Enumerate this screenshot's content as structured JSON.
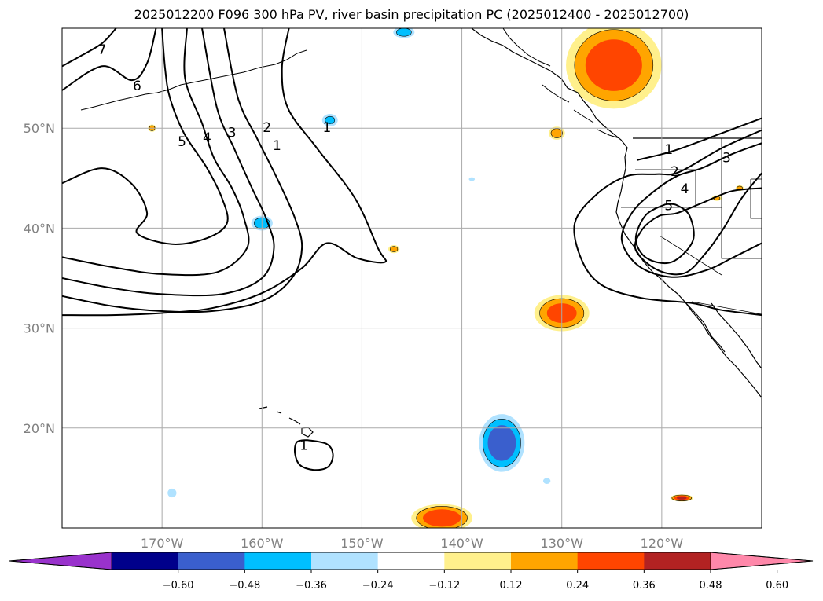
{
  "chart_data": {
    "type": "heatmap",
    "title": "2025012200 F096 300 hPa PV, river basin precipitation PC (2025012400 - 2025012700)",
    "xlabel": "",
    "ylabel": "",
    "xlim": [
      -180,
      -110
    ],
    "ylim": [
      10,
      60
    ],
    "grid": true,
    "x_ticks": [
      {
        "value": -170,
        "label": "170°W"
      },
      {
        "value": -160,
        "label": "160°W"
      },
      {
        "value": -150,
        "label": "150°W"
      },
      {
        "value": -140,
        "label": "140°W"
      },
      {
        "value": -130,
        "label": "130°W"
      },
      {
        "value": -120,
        "label": "120°W"
      }
    ],
    "y_ticks": [
      {
        "value": 20,
        "label": "20°N"
      },
      {
        "value": 30,
        "label": "30°N"
      },
      {
        "value": 40,
        "label": "40°N"
      },
      {
        "value": 50,
        "label": "50°N"
      }
    ],
    "colorbar": {
      "placement": "bottom",
      "extend": "both",
      "levels": [
        -0.6,
        -0.48,
        -0.36,
        -0.24,
        -0.12,
        0.12,
        0.24,
        0.36,
        0.48,
        0.6
      ],
      "tick_labels": [
        "−0.60",
        "−0.48",
        "−0.36",
        "−0.24",
        "−0.12",
        "0.12",
        "0.24",
        "0.36",
        "0.48",
        "0.60"
      ],
      "colors": [
        "#9932cc",
        "#00008b",
        "#3a5fcd",
        "#00bfff",
        "#b0e2ff",
        "#ffffff",
        "#fff08c",
        "#ffa500",
        "#ff4500",
        "#b22222",
        "#ff88aa"
      ]
    },
    "pv_contour_labels": [
      {
        "label": "7",
        "lon": -176.0,
        "lat": 57.8
      },
      {
        "label": "6",
        "lon": -172.5,
        "lat": 54.2
      },
      {
        "label": "5",
        "lon": -168.0,
        "lat": 48.6
      },
      {
        "label": "4",
        "lon": -165.5,
        "lat": 49.0
      },
      {
        "label": "3",
        "lon": -163.0,
        "lat": 49.5
      },
      {
        "label": "2",
        "lon": -159.5,
        "lat": 50.0
      },
      {
        "label": "1",
        "lon": -153.5,
        "lat": 50.0
      },
      {
        "label": "1",
        "lon": -158.5,
        "lat": 48.2
      },
      {
        "label": "1",
        "lon": -119.3,
        "lat": 47.8
      },
      {
        "label": "2",
        "lon": -118.7,
        "lat": 45.6
      },
      {
        "label": "3",
        "lon": -113.5,
        "lat": 47.0
      },
      {
        "label": "4",
        "lon": -117.7,
        "lat": 43.9
      },
      {
        "label": "5",
        "lon": -119.3,
        "lat": 42.2
      },
      {
        "label": "1",
        "lon": -155.8,
        "lat": 18.2
      }
    ],
    "pv_contours": [
      {
        "level": 7,
        "points": [
          [
            -180,
            56.2
          ],
          [
            -178,
            57.3
          ],
          [
            -176,
            58.5
          ],
          [
            -174.6,
            60
          ]
        ]
      },
      {
        "level": 6,
        "points": [
          [
            -180,
            53.8
          ],
          [
            -176,
            56.2
          ],
          [
            -173,
            54.8
          ],
          [
            -171.5,
            56.5
          ],
          [
            -170.6,
            60
          ]
        ]
      },
      {
        "level": 5,
        "points": [
          [
            -180,
            44.5
          ],
          [
            -176,
            46
          ],
          [
            -173,
            44.4
          ],
          [
            -171.5,
            41.5
          ],
          [
            -172.5,
            39.5
          ],
          [
            -169,
            38.4
          ],
          [
            -165.5,
            39
          ],
          [
            -163.5,
            40.5
          ],
          [
            -164,
            43
          ],
          [
            -165.5,
            46
          ],
          [
            -167.8,
            49.5
          ],
          [
            -169.2,
            53
          ],
          [
            -169.7,
            56
          ],
          [
            -170,
            60
          ]
        ]
      },
      {
        "level": 4,
        "points": [
          [
            -180,
            37.1
          ],
          [
            -175,
            36.1
          ],
          [
            -170,
            35.4
          ],
          [
            -164.5,
            35.6
          ],
          [
            -161.5,
            38
          ],
          [
            -161.8,
            41
          ],
          [
            -163,
            44
          ],
          [
            -164.8,
            47
          ],
          [
            -166,
            50.5
          ],
          [
            -167.7,
            55
          ],
          [
            -167.5,
            60
          ]
        ]
      },
      {
        "level": 3,
        "points": [
          [
            -180,
            35
          ],
          [
            -175,
            34
          ],
          [
            -170,
            33.4
          ],
          [
            -164,
            33.4
          ],
          [
            -160,
            35
          ],
          [
            -158.8,
            38
          ],
          [
            -159.6,
            41
          ],
          [
            -161,
            44
          ],
          [
            -162.8,
            48
          ],
          [
            -164.5,
            52
          ],
          [
            -166,
            60
          ]
        ]
      },
      {
        "level": 2,
        "points": [
          [
            -180,
            33.2
          ],
          [
            -175,
            32.2
          ],
          [
            -170,
            31.7
          ],
          [
            -165,
            31.7
          ],
          [
            -160,
            32.7
          ],
          [
            -157,
            35
          ],
          [
            -156,
            38
          ],
          [
            -156.7,
            41
          ],
          [
            -158.5,
            45
          ],
          [
            -160.5,
            49
          ],
          [
            -162.4,
            53
          ],
          [
            -163.8,
            60
          ]
        ]
      },
      {
        "level": 1,
        "points": [
          [
            -180,
            31.3
          ],
          [
            -175,
            31.3
          ],
          [
            -170,
            31.5
          ],
          [
            -165,
            32
          ],
          [
            -160,
            33.5
          ],
          [
            -156,
            36
          ],
          [
            -153.5,
            38.5
          ],
          [
            -150.5,
            37
          ],
          [
            -147.7,
            36.6
          ],
          [
            -148.4,
            38
          ],
          [
            -150.7,
            43
          ],
          [
            -154.5,
            48
          ],
          [
            -157.4,
            52
          ],
          [
            -158,
            56
          ],
          [
            -157.3,
            60
          ]
        ]
      },
      {
        "level": 1,
        "points": [
          [
            -110,
            51
          ],
          [
            -114,
            49.5
          ],
          [
            -118,
            48
          ],
          [
            -120,
            47.4
          ],
          [
            -122.5,
            46.8
          ]
        ]
      },
      {
        "level": 2,
        "points": [
          [
            -110,
            49.8
          ],
          [
            -114,
            48
          ],
          [
            -118.3,
            45.6
          ],
          [
            -120.5,
            45.4
          ],
          [
            -123.5,
            45.2
          ],
          [
            -126.5,
            43.4
          ],
          [
            -128.7,
            40.5
          ],
          [
            -128,
            36.8
          ],
          [
            -126,
            34.3
          ],
          [
            -122,
            33
          ],
          [
            -117,
            32.5
          ],
          [
            -114,
            31.8
          ],
          [
            -110,
            31.3
          ]
        ]
      },
      {
        "level": 3,
        "points": [
          [
            -110,
            48.5
          ],
          [
            -113,
            47.4
          ],
          [
            -116,
            46
          ],
          [
            -118.5,
            45.2
          ],
          [
            -121,
            43.5
          ],
          [
            -123,
            41.5
          ],
          [
            -124,
            38.8
          ],
          [
            -122.3,
            36.2
          ],
          [
            -119,
            35.1
          ],
          [
            -115.5,
            35.8
          ],
          [
            -113,
            37
          ],
          [
            -110,
            38.5
          ]
        ]
      },
      {
        "level": 4,
        "points": [
          [
            -110,
            44
          ],
          [
            -113,
            43.7
          ],
          [
            -116,
            42.5
          ],
          [
            -118.5,
            41.5
          ],
          [
            -120.3,
            41.2
          ],
          [
            -122,
            39.8
          ],
          [
            -122.6,
            37.8
          ],
          [
            -120.4,
            35.8
          ],
          [
            -117.7,
            35.5
          ],
          [
            -115.6,
            37.5
          ],
          [
            -113.8,
            40
          ],
          [
            -112,
            43
          ],
          [
            -110,
            45.5
          ]
        ]
      },
      {
        "level": 5,
        "points": [
          [
            -119.6,
            42.4
          ],
          [
            -121.6,
            41.3
          ],
          [
            -122.6,
            38.9
          ],
          [
            -121.5,
            37
          ],
          [
            -119,
            36.6
          ],
          [
            -116.9,
            38.7
          ],
          [
            -117.2,
            41.2
          ],
          [
            -118.5,
            42.3
          ],
          [
            -119.6,
            42.4
          ]
        ]
      },
      {
        "level": 1,
        "points": [
          [
            -155.5,
            18.8
          ],
          [
            -156.5,
            18.6
          ],
          [
            -156.7,
            17.5
          ],
          [
            -156.2,
            16.3
          ],
          [
            -154.8,
            15.8
          ],
          [
            -153.4,
            16.1
          ],
          [
            -152.9,
            17.3
          ],
          [
            -153.5,
            18.4
          ],
          [
            -155.5,
            18.8
          ]
        ]
      }
    ],
    "precip_anomalies": [
      {
        "name": "ne-pacific-bc-washington",
        "lon": -124.8,
        "lat": 56.3,
        "rx": 5.5,
        "ry": 5.0,
        "peak": 0.43,
        "bbox_clip": true
      },
      {
        "name": "gulf-alaska-north",
        "lon": -145.8,
        "lat": 59.6,
        "rx": 1.3,
        "ry": 0.7,
        "peak": -0.3
      },
      {
        "name": "north-pacific-52n",
        "lon": -153.2,
        "lat": 50.8,
        "rx": 1.0,
        "ry": 0.8,
        "peak": -0.25
      },
      {
        "name": "coast-50n",
        "lon": -130.5,
        "lat": 49.5,
        "rx": 1.0,
        "ry": 0.8,
        "peak": 0.3
      },
      {
        "name": "small-45n",
        "lon": -139.0,
        "lat": 44.9,
        "rx": 0.4,
        "ry": 0.25,
        "peak": -0.2
      },
      {
        "name": "north-pacific-40n",
        "lon": -160.0,
        "lat": 40.5,
        "rx": 1.3,
        "ry": 0.9,
        "peak": -0.32
      },
      {
        "name": "small-38n",
        "lon": -146.8,
        "lat": 37.9,
        "rx": 0.7,
        "ry": 0.5,
        "peak": 0.28
      },
      {
        "name": "east-pacific-32n",
        "lon": -130.0,
        "lat": 31.5,
        "rx": 3.2,
        "ry": 2.1,
        "peak": 0.4
      },
      {
        "name": "subtropical-18n",
        "lon": -136.0,
        "lat": 18.5,
        "rx": 2.6,
        "ry": 3.3,
        "peak": -0.45
      },
      {
        "name": "small-14n",
        "lon": -131.5,
        "lat": 14.7,
        "rx": 0.5,
        "ry": 0.4,
        "peak": -0.2
      },
      {
        "name": "small-13n-west",
        "lon": -169.0,
        "lat": 13.5,
        "rx": 0.6,
        "ry": 0.6,
        "peak": -0.2
      },
      {
        "name": "south-11n",
        "lon": -142.0,
        "lat": 11.0,
        "rx": 3.5,
        "ry": 1.6,
        "peak": 0.45
      },
      {
        "name": "small-13n-east",
        "lon": -118.0,
        "lat": 13.0,
        "rx": 1.3,
        "ry": 0.4,
        "peak": 0.5
      },
      {
        "name": "dot-50n",
        "lon": -171.0,
        "lat": 50.0,
        "rx": 0.5,
        "ry": 0.45,
        "peak": 0.3
      },
      {
        "name": "small-43n-a",
        "lon": -114.5,
        "lat": 43.0,
        "rx": 0.6,
        "ry": 0.35,
        "peak": 0.28
      },
      {
        "name": "small-44n-b",
        "lon": -112.2,
        "lat": 44.0,
        "rx": 0.5,
        "ry": 0.35,
        "peak": 0.3
      }
    ]
  }
}
